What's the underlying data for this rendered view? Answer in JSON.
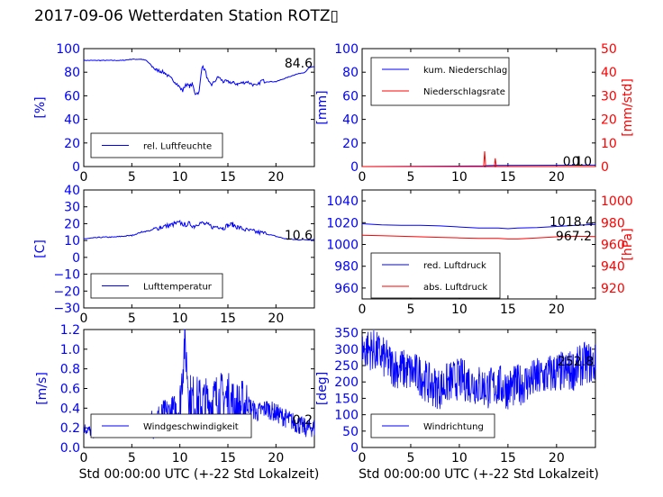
{
  "suptitle": "2017-09-06 Wetterdaten Station ROTZ▯",
  "colors": {
    "primary": "#0000ff",
    "secondary": "#ff0000",
    "axis": "#000000"
  },
  "chart_data": [
    {
      "type": "line",
      "id": "humidity",
      "xlim": [
        0,
        24
      ],
      "ylim": [
        0,
        100
      ],
      "xticks": [
        "0",
        "5",
        "10",
        "15",
        "20"
      ],
      "yticks": [
        "0",
        "20",
        "40",
        "60",
        "80",
        "100"
      ],
      "ylabel": "[%]",
      "legend": {
        "position": "lower-left",
        "entries": [
          "rel. Luftfeuchte"
        ]
      },
      "annotation": "84.6",
      "series": [
        {
          "name": "rel. Luftfeuchte",
          "x": [
            0,
            2,
            4,
            5,
            6,
            6.5,
            7,
            7.5,
            8,
            8.5,
            9,
            9.5,
            10,
            10.3,
            10.6,
            11,
            11.3,
            11.6,
            12,
            12.3,
            12.6,
            13,
            13.3,
            13.6,
            14,
            14.5,
            15,
            15.5,
            16,
            17,
            18,
            18.5,
            19,
            20,
            21,
            22,
            23,
            23.5,
            24
          ],
          "y": [
            90,
            90,
            90,
            91,
            91,
            90,
            86,
            82,
            81,
            79,
            75,
            72,
            67,
            64,
            70,
            68,
            70,
            62,
            63,
            85,
            82,
            71,
            69,
            72,
            76,
            72,
            72,
            71,
            70,
            72,
            68,
            73,
            72,
            72,
            75,
            78,
            80,
            84,
            84.6
          ]
        }
      ]
    },
    {
      "type": "line",
      "id": "precipitation",
      "xlim": [
        0,
        24
      ],
      "ylim": [
        0,
        100
      ],
      "ylim_right": [
        0,
        50
      ],
      "xticks": [
        "0",
        "5",
        "10",
        "15",
        "20"
      ],
      "yticks": [
        "0",
        "20",
        "40",
        "60",
        "80",
        "100"
      ],
      "yticks_right": [
        "0",
        "10",
        "20",
        "30",
        "40",
        "50"
      ],
      "ylabel": "[mm]",
      "ylabel_right": "[mm/std]",
      "legend": {
        "position": "upper-left",
        "entries": [
          "kum. Niederschlag",
          "Niederschlagsrate"
        ]
      },
      "annotation": "0.0",
      "annotation2": "0.1",
      "series": [
        {
          "name": "kum. Niederschlag",
          "x": [
            0,
            12.6,
            12.8,
            13.8,
            24
          ],
          "y": [
            0,
            0.5,
            0.8,
            1,
            1.2
          ]
        },
        {
          "name": "Niederschlagsrate",
          "x": [
            0,
            12.5,
            12.6,
            12.7,
            12.8,
            13.6,
            13.7,
            13.8,
            24
          ],
          "y": [
            0,
            0,
            6.5,
            0.5,
            0,
            0,
            3.5,
            0,
            0
          ]
        }
      ]
    },
    {
      "type": "line",
      "id": "temperature",
      "xlim": [
        0,
        24
      ],
      "ylim": [
        -30,
        40
      ],
      "xticks": [
        "0",
        "5",
        "10",
        "15",
        "20"
      ],
      "yticks": [
        "−30",
        "−20",
        "−10",
        "0",
        "10",
        "20",
        "30",
        "40"
      ],
      "ylabel": "[C]",
      "legend": {
        "position": "lower-left",
        "entries": [
          "Lufttemperatur"
        ]
      },
      "annotation": "10.6",
      "series": [
        {
          "name": "Lufttemperatur",
          "x": [
            0,
            1,
            2,
            3,
            4,
            5,
            6,
            7,
            8,
            9,
            9.5,
            10,
            10.5,
            11,
            11.5,
            12,
            12.5,
            13,
            13.5,
            14,
            14.5,
            15,
            15.5,
            16,
            17,
            18,
            19,
            20,
            21,
            22,
            23,
            24
          ],
          "y": [
            11,
            11.5,
            12,
            12,
            12.5,
            13,
            15,
            16,
            18,
            19,
            20,
            20.5,
            19.5,
            20,
            18.5,
            20.5,
            20,
            19,
            18,
            18.5,
            17.5,
            19,
            19.5,
            18,
            16,
            15,
            14,
            12.5,
            11,
            10.5,
            10.5,
            10.6
          ]
        }
      ]
    },
    {
      "type": "line",
      "id": "pressure",
      "xlim": [
        0,
        24
      ],
      "ylim": [
        950,
        1050
      ],
      "ylim_right": [
        910,
        1010
      ],
      "xticks": [
        "0",
        "5",
        "10",
        "15",
        "20"
      ],
      "yticks": [
        "960",
        "980",
        "1000",
        "1020",
        "1040"
      ],
      "yticks_right": [
        "920",
        "940",
        "960",
        "980",
        "1000"
      ],
      "ylabel_right": "[hPa]",
      "legend": {
        "position": "lower-left",
        "entries": [
          "red. Luftdruck",
          "abs. Luftdruck"
        ]
      },
      "annotation": "1018.4",
      "annotation2": "967.2",
      "series": [
        {
          "name": "red. Luftdruck",
          "x": [
            0,
            2,
            4,
            6,
            8,
            10,
            12,
            14,
            15,
            16,
            18,
            20,
            22,
            24
          ],
          "y": [
            1019,
            1018,
            1017.5,
            1017.5,
            1017,
            1016,
            1015,
            1015,
            1014.5,
            1015,
            1015.5,
            1016.5,
            1017.5,
            1018.4
          ]
        },
        {
          "name": "abs. Luftdruck",
          "x": [
            0,
            2,
            4,
            6,
            8,
            10,
            12,
            14,
            15,
            16,
            18,
            20,
            22,
            24
          ],
          "y": [
            968.5,
            968,
            967.5,
            967,
            966.5,
            966,
            965.5,
            965.5,
            965,
            965,
            966,
            967,
            967.5,
            967.2
          ]
        }
      ]
    },
    {
      "type": "line",
      "id": "windspeed",
      "xlim": [
        0,
        24
      ],
      "ylim": [
        0,
        1.2
      ],
      "xticks": [
        "0",
        "5",
        "10",
        "15",
        "20"
      ],
      "yticks": [
        "0.0",
        "0.2",
        "0.4",
        "0.6",
        "0.8",
        "1.0",
        "1.2"
      ],
      "ylabel": "[m/s]",
      "xlabel": "Std 00:00:00 UTC (+-22 Std Lokalzeit)",
      "legend": {
        "position": "lower-left",
        "entries": [
          "Windgeschwindigkeit"
        ]
      },
      "annotation": "0.2",
      "series": [
        {
          "name": "Windgeschwindigkeit",
          "x": [
            0,
            1,
            2,
            3,
            4,
            5,
            6,
            7,
            8,
            9,
            10,
            10.5,
            11,
            12,
            13,
            14,
            15,
            16,
            17,
            18,
            19,
            20,
            21,
            22,
            23,
            24
          ],
          "y": [
            0.2,
            0.15,
            0.2,
            0.2,
            0.2,
            0.22,
            0.2,
            0.25,
            0.3,
            0.35,
            0.4,
            1.1,
            0.5,
            0.45,
            0.45,
            0.5,
            0.5,
            0.4,
            0.45,
            0.35,
            0.4,
            0.35,
            0.3,
            0.25,
            0.2,
            0.2
          ]
        }
      ]
    },
    {
      "type": "line",
      "id": "winddirection",
      "xlim": [
        0,
        24
      ],
      "ylim": [
        0,
        360
      ],
      "xticks": [
        "0",
        "5",
        "10",
        "15",
        "20"
      ],
      "yticks": [
        "0",
        "50",
        "100",
        "150",
        "200",
        "250",
        "300",
        "350"
      ],
      "ylabel": "[deg]",
      "xlabel": "Std 00:00:00 UTC (+-22 Std Lokalzeit)",
      "legend": {
        "position": "lower-left",
        "entries": [
          "Windrichtung"
        ]
      },
      "annotation": "252.8",
      "series": [
        {
          "name": "Windrichtung",
          "x": [
            0,
            1,
            2,
            3,
            4,
            5,
            6,
            7,
            8,
            9,
            10,
            11,
            12,
            13,
            14,
            15,
            16,
            17,
            18,
            19,
            20,
            21,
            22,
            23,
            24
          ],
          "y": [
            300,
            300,
            280,
            250,
            240,
            230,
            220,
            190,
            180,
            200,
            210,
            200,
            190,
            180,
            190,
            180,
            190,
            200,
            210,
            220,
            230,
            230,
            240,
            260,
            252.8
          ]
        }
      ]
    }
  ]
}
